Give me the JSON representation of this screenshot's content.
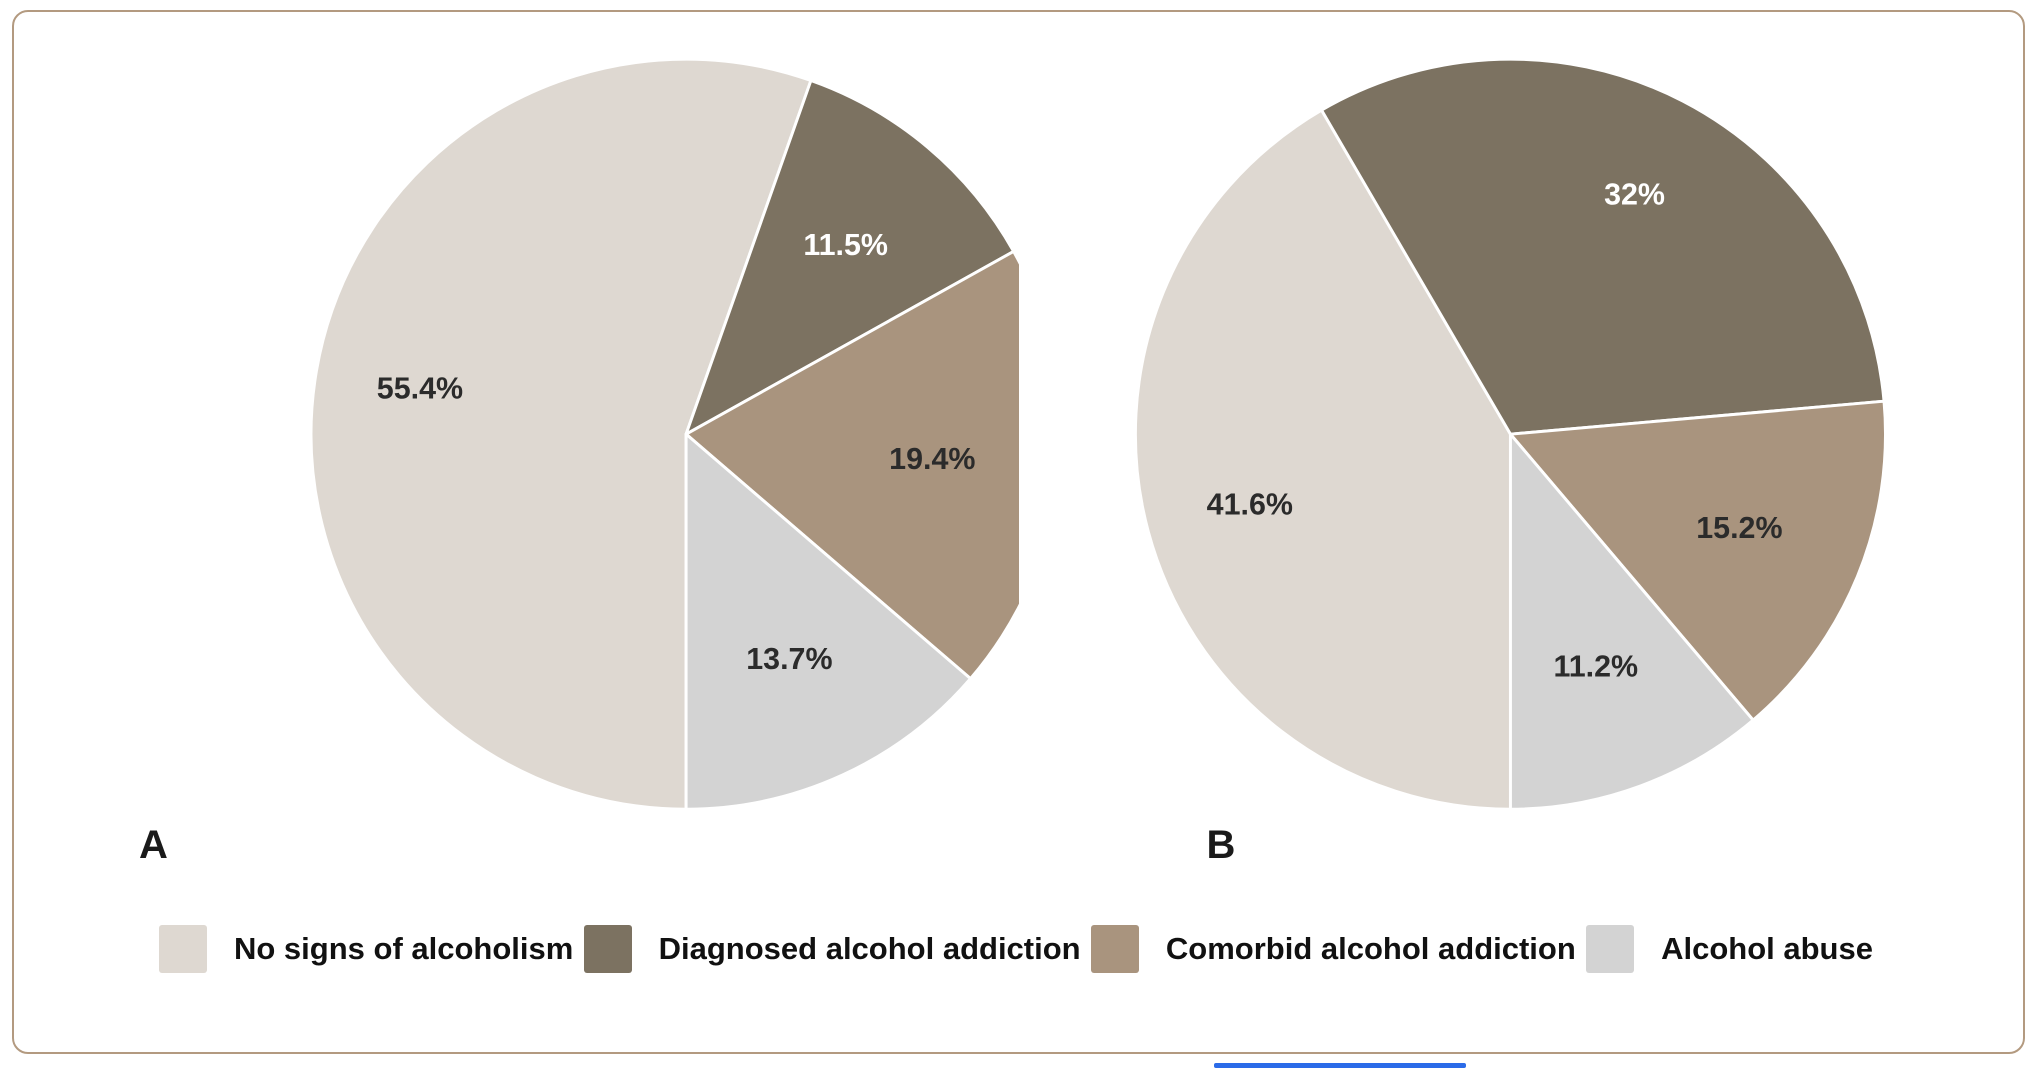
{
  "chart_data": [
    {
      "type": "pie",
      "title": "A",
      "labels": [
        "No signs of alcoholism",
        "Diagnosed alcohol addiction",
        "Comorbid alcohol addiction",
        "Alcohol abuse"
      ],
      "values": [
        55.4,
        11.5,
        19.4,
        13.7
      ],
      "display_labels": [
        "55.4%",
        "11.5%",
        "19.4%",
        "13.7%"
      ],
      "colors": [
        "#ded8d1",
        "#7c7261",
        "#a9947e",
        "#d3d3d3"
      ],
      "label_colors": [
        "#2b2b2b",
        "#ffffff",
        "#2b2b2b",
        "#2b2b2b"
      ],
      "units": "%",
      "start_angle_deg": 180,
      "direction": "clockwise",
      "legend_position": "bottom"
    },
    {
      "type": "pie",
      "title": "B",
      "labels": [
        "No signs of alcoholism",
        "Diagnosed alcohol addiction",
        "Comorbid alcohol addiction",
        "Alcohol abuse"
      ],
      "values": [
        41.6,
        32,
        15.2,
        11.2
      ],
      "display_labels": [
        "41.6%",
        "32%",
        "15.2%",
        "11.2%"
      ],
      "colors": [
        "#ded8d1",
        "#7c7261",
        "#a9947e",
        "#d3d3d3"
      ],
      "label_colors": [
        "#2b2b2b",
        "#ffffff",
        "#2b2b2b",
        "#2b2b2b"
      ],
      "units": "%",
      "start_angle_deg": 180,
      "direction": "clockwise",
      "legend_position": "bottom"
    }
  ],
  "legend": {
    "items": [
      {
        "label": "No signs of alcoholism",
        "color": "#ded8d1"
      },
      {
        "label": "Diagnosed alcohol addiction",
        "color": "#7c7261"
      },
      {
        "label": "Comorbid alcohol addiction",
        "color": "#a9947e"
      },
      {
        "label": "Alcohol abuse",
        "color": "#d3d3d3"
      }
    ]
  },
  "style": {
    "frame_border_color": "#b39a80",
    "background": "#ffffff",
    "slice_stroke_color": "#ffffff",
    "accent_line_color": "#2b6be8"
  }
}
